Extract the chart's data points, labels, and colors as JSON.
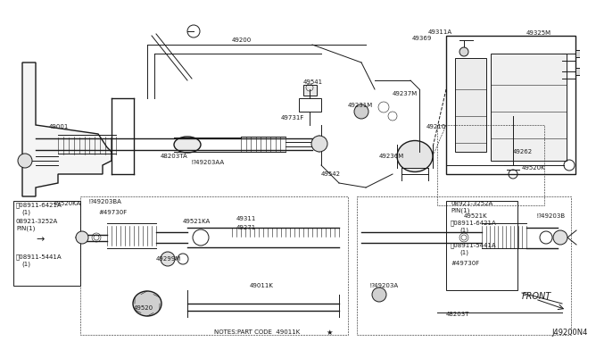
{
  "background_color": "#ffffff",
  "diagram_id": "J49200N4",
  "notes_text": "NOTES:PART CODE  49011K",
  "front_label": "FRONT",
  "line_color": "#1a1a1a",
  "label_color": "#000000",
  "font_size_small": 5.0,
  "font_size_med": 6.0,
  "font_size_large": 7.0
}
